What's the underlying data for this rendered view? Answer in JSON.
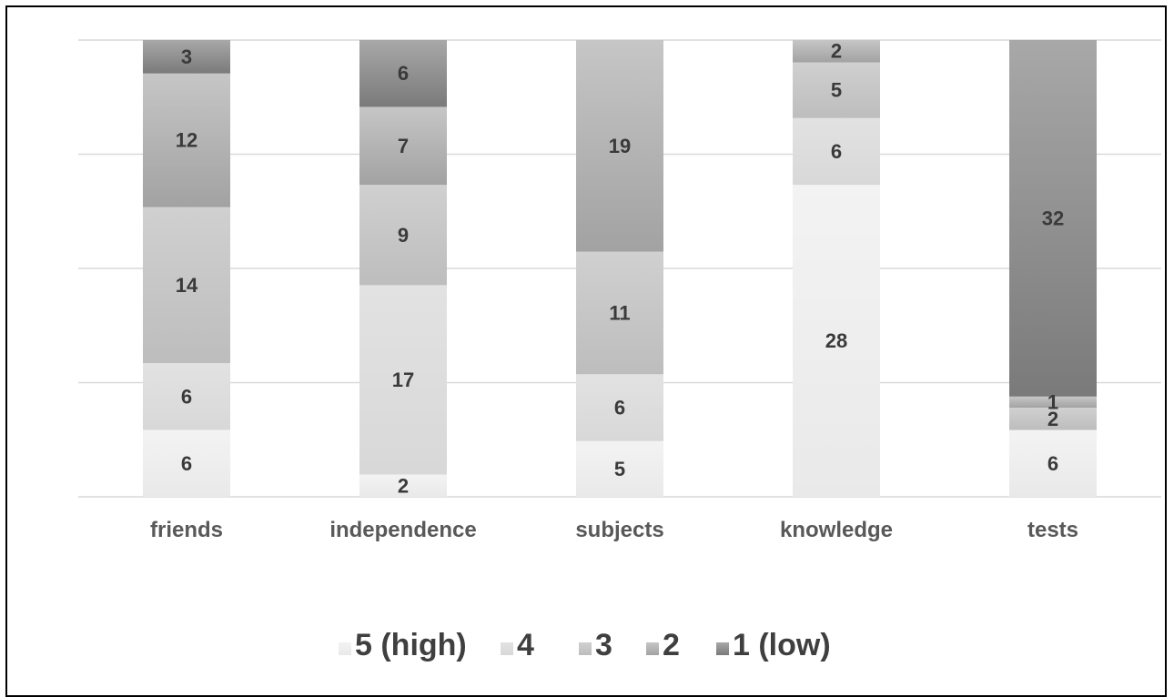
{
  "chart_data": {
    "type": "bar",
    "stacked": true,
    "percent_stacked": true,
    "title": "",
    "xlabel": "",
    "ylabel": "",
    "grid": true,
    "legend_position": "bottom",
    "categories": [
      "friends",
      "independence",
      "subjects",
      "knowledge",
      "tests"
    ],
    "series": [
      {
        "name": "5 (high)",
        "values": [
          6,
          2,
          5,
          28,
          6
        ],
        "color": "#e9e9e9",
        "gradient_to": "#f3f3f3"
      },
      {
        "name": "4",
        "values": [
          6,
          17,
          6,
          6,
          0
        ],
        "color": "#d8d8d8",
        "gradient_to": "#e2e2e2"
      },
      {
        "name": "3",
        "values": [
          14,
          9,
          11,
          5,
          2
        ],
        "color": "#bdbdbd",
        "gradient_to": "#d0d0d0"
      },
      {
        "name": "2",
        "values": [
          12,
          7,
          19,
          2,
          1
        ],
        "color": "#a2a2a2",
        "gradient_to": "#c6c6c6"
      },
      {
        "name": "1 (low)",
        "values": [
          3,
          6,
          0,
          0,
          32
        ],
        "color": "#7a7a7a",
        "gradient_to": "#a8a8a8"
      }
    ],
    "data_labels": [
      [
        "6",
        "6",
        "14",
        "12",
        "3"
      ],
      [
        "2",
        "17",
        "9",
        "7",
        "6"
      ],
      [
        "5",
        "6",
        "11",
        "19",
        ""
      ],
      [
        "28",
        "6",
        "5",
        "2",
        ""
      ],
      [
        "6",
        "",
        "2",
        "1",
        "32"
      ]
    ]
  }
}
